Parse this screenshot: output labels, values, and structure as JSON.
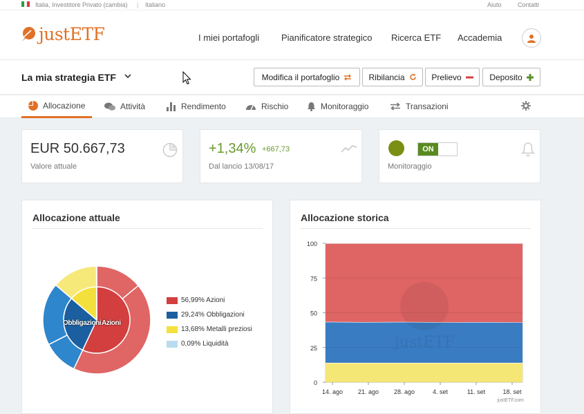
{
  "topbar": {
    "region": "Italia, Investitore Privato (cambia)",
    "separator": "|",
    "language": "Italiano",
    "help": "Aiuto",
    "contact": "Contatti"
  },
  "header": {
    "logo_text": "justETF",
    "nav": [
      "I miei portafogli",
      "Pianificatore strategico",
      "Ricerca ETF",
      "Accademia"
    ]
  },
  "strategy": {
    "title": "La mia strategia ETF",
    "buttons": {
      "edit": "Modifica il portafoglio",
      "rebalance": "Ribilancia",
      "withdraw": "Prelievo",
      "deposit": "Deposito"
    }
  },
  "tabs": [
    "Allocazione",
    "Attività",
    "Rendimento",
    "Rischio",
    "Monitoraggio",
    "Transazioni"
  ],
  "kpis": {
    "value": {
      "main": "EUR 50.667,73",
      "label": "Valore attuale"
    },
    "performance": {
      "percent": "+1,34%",
      "amount": "+667,73",
      "label": "Dal lancio 13/08/17"
    },
    "monitoring": {
      "toggle": "ON",
      "label": "Monitoraggio"
    }
  },
  "current_allocation": {
    "title": "Allocazione attuale",
    "inner_labels": [
      "Obbligazioni",
      "Azioni"
    ],
    "legend": [
      {
        "label": "56,99% Azioni",
        "color": "#d33f3f"
      },
      {
        "label": "29,24% Obbligazioni",
        "color": "#1c5fa0"
      },
      {
        "label": "13,68% Metalli preziosi",
        "color": "#f4e03c"
      },
      {
        "label": "0,09% Liquidità",
        "color": "#b9dcef"
      }
    ],
    "inner_slices": [
      {
        "name": "Azioni",
        "value": 56.99,
        "color": "#d33f3f"
      },
      {
        "name": "Obbligazioni",
        "value": 29.24,
        "color": "#1c5fa0"
      },
      {
        "name": "Metalli preziosi",
        "value": 13.68,
        "color": "#f4e03c"
      },
      {
        "name": "Liquidità",
        "value": 0.09,
        "color": "#b9dcef"
      }
    ],
    "outer_slices": [
      {
        "value": 14.0,
        "color": "#e06565"
      },
      {
        "value": 42.99,
        "color": "#e06565"
      },
      {
        "value": 10.5,
        "color": "#2e86cc"
      },
      {
        "value": 18.74,
        "color": "#2e86cc"
      },
      {
        "value": 13.68,
        "color": "#f7e87a"
      },
      {
        "value": 0.09,
        "color": "#c8e4f4"
      }
    ]
  },
  "chart_data": {
    "type": "area",
    "title": "Allocazione storica",
    "x": [
      "14. ago",
      "21. ago",
      "28. ago",
      "4. set",
      "11. set",
      "18. set"
    ],
    "yticks": [
      0,
      25,
      50,
      75,
      100
    ],
    "ylim": [
      0,
      100
    ],
    "stacked": true,
    "series": [
      {
        "name": "Metalli preziosi",
        "color": "#f4e776",
        "values": [
          14,
          14,
          14,
          14,
          14,
          14
        ]
      },
      {
        "name": "Obbligazioni",
        "color": "#3a7cc2",
        "values": [
          29.5,
          29.3,
          29.4,
          29.2,
          29.3,
          29.2
        ]
      },
      {
        "name": "Azioni",
        "color": "#df6464",
        "values": [
          56.5,
          56.7,
          56.6,
          56.8,
          56.7,
          56.8
        ]
      }
    ],
    "watermark": "justETF",
    "credit": "justETF.com"
  }
}
